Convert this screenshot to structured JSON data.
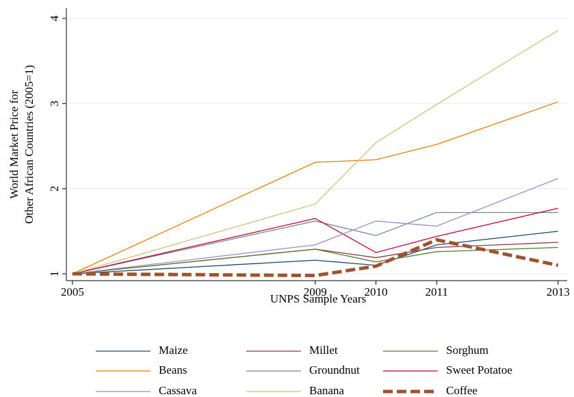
{
  "chart_data": {
    "type": "line",
    "ylabel": [
      "World Market Price for",
      "Other African Countries (2005=1)"
    ],
    "xlabel": "UNPS Sample Years",
    "x": [
      2005,
      2009,
      2010,
      2011,
      2013
    ],
    "xlim": [
      2004.9,
      2013.15
    ],
    "xticks": [
      2005,
      2009,
      2010,
      2011,
      2013
    ],
    "ylim": [
      0.92,
      4.12
    ],
    "yticks": [
      1,
      2,
      3,
      4
    ],
    "grid": true,
    "legend": "bottom",
    "series": [
      {
        "name": "Maize",
        "color": "#1a476f",
        "values": [
          1,
          1.16,
          1.1,
          1.34,
          1.5
        ]
      },
      {
        "name": "Millet",
        "color": "#90353b",
        "values": [
          1,
          1.29,
          1.19,
          1.31,
          1.37
        ]
      },
      {
        "name": "Sorghum",
        "color": "#55752f",
        "values": [
          1,
          1.29,
          1.14,
          1.26,
          1.31
        ]
      },
      {
        "name": "Beans",
        "color": "#e37e00",
        "values": [
          1,
          2.31,
          2.34,
          2.52,
          3.02
        ]
      },
      {
        "name": "Groundnut",
        "color": "#6e8e84",
        "values": [
          1,
          1.62,
          1.45,
          1.72,
          1.72
        ]
      },
      {
        "name": "Sweet Potatoe",
        "color": "#c10534",
        "values": [
          1,
          1.65,
          1.25,
          1.44,
          1.77
        ]
      },
      {
        "name": "Cassava",
        "color": "#938dd2",
        "values": [
          1,
          1.34,
          1.62,
          1.56,
          2.12
        ]
      },
      {
        "name": "Banana",
        "color": "#cac27e",
        "values": [
          1,
          1.82,
          2.54,
          2.99,
          3.86
        ]
      },
      {
        "name": "Coffee",
        "color": "#a0522d",
        "values": [
          1,
          0.98,
          1.09,
          1.4,
          1.1
        ],
        "dash": true
      }
    ]
  }
}
